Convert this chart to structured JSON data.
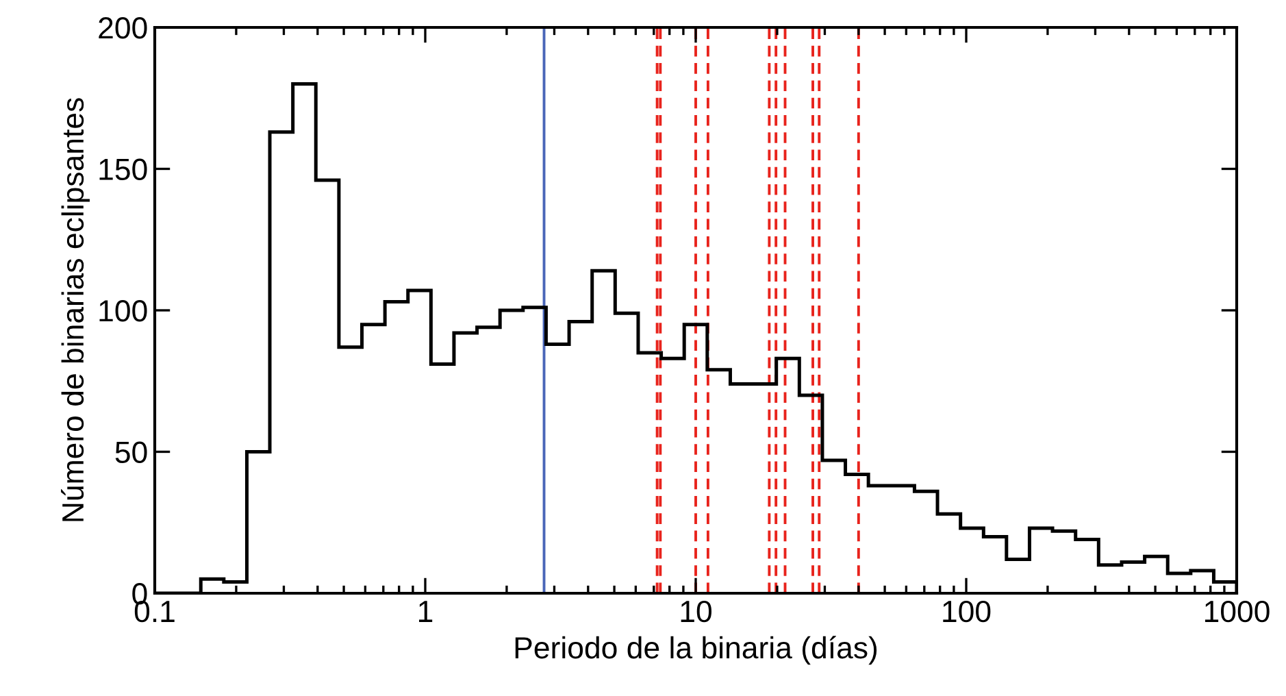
{
  "chart_data": {
    "type": "histogram",
    "xlabel": "Periodo de la binaria (días)",
    "ylabel": "Número de binarias eclipsantes",
    "bins": [
      0.1,
      0.1216,
      0.148,
      0.18,
      0.219,
      0.2663,
      0.324,
      0.3941,
      0.4795,
      0.5833,
      0.7096,
      0.8632,
      1.05,
      1.277,
      1.554,
      1.89,
      2.299,
      2.797,
      3.403,
      4.14,
      5.036,
      6.127,
      7.453,
      9.067,
      11.03,
      13.42,
      16.32,
      19.86,
      24.16,
      29.39,
      35.75,
      43.49,
      52.91,
      64.37,
      78.3,
      95.26,
      115.9,
      140.9,
      171.4,
      208.5,
      253.7,
      308.6,
      375.5,
      456.8,
      555.7,
      676.0,
      822.4,
      1000
    ],
    "values": [
      0,
      0,
      5,
      4,
      50,
      163,
      180,
      146,
      87,
      95,
      103,
      107,
      81,
      92,
      94,
      100,
      101,
      88,
      96,
      114,
      99,
      85,
      83,
      95,
      79,
      74,
      74,
      83,
      70,
      47,
      42,
      38,
      38,
      36,
      28,
      23,
      20,
      12,
      23,
      22,
      19,
      10,
      11,
      13,
      7,
      8,
      4
    ],
    "color": "#000000",
    "log": "x",
    "xlim": [
      0.1,
      1000
    ],
    "xticks": [
      0.1,
      1,
      10,
      100,
      1000
    ],
    "ylim": [
      0,
      200
    ],
    "yticks": [
      0,
      50,
      100,
      150,
      200
    ],
    "grid": false,
    "legend": false,
    "ref_lines": [
      {
        "axis": "x",
        "value": 2.75,
        "color": "#4a66b8",
        "line_style": "solid"
      },
      {
        "axis": "x",
        "value": 7.2,
        "color": "#e8231c",
        "line_style": "dashed"
      },
      {
        "axis": "x",
        "value": 7.4,
        "color": "#e8231c",
        "line_style": "dashed"
      },
      {
        "axis": "x",
        "value": 10.0,
        "color": "#e8231c",
        "line_style": "dashed"
      },
      {
        "axis": "x",
        "value": 11.1,
        "color": "#e8231c",
        "line_style": "dashed"
      },
      {
        "axis": "x",
        "value": 18.7,
        "color": "#e8231c",
        "line_style": "dashed"
      },
      {
        "axis": "x",
        "value": 19.8,
        "color": "#e8231c",
        "line_style": "dashed"
      },
      {
        "axis": "x",
        "value": 21.4,
        "color": "#e8231c",
        "line_style": "dashed"
      },
      {
        "axis": "x",
        "value": 27.1,
        "color": "#e8231c",
        "line_style": "dashed"
      },
      {
        "axis": "x",
        "value": 28.6,
        "color": "#e8231c",
        "line_style": "dashed"
      },
      {
        "axis": "x",
        "value": 40,
        "color": "#e8231c",
        "line_style": "dashed"
      }
    ]
  }
}
